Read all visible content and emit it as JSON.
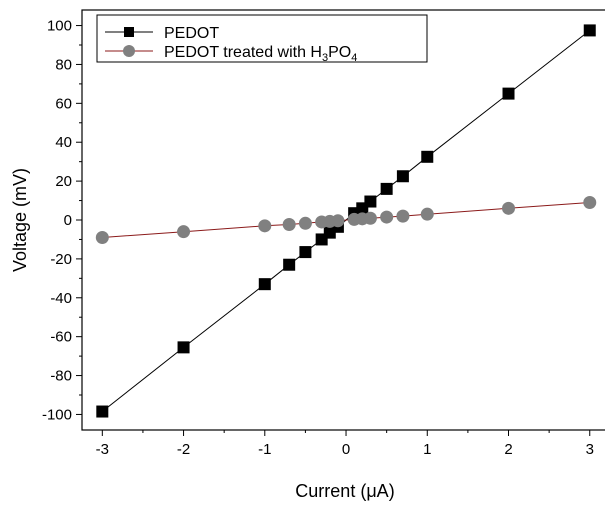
{
  "chart_data": {
    "type": "scatter",
    "xlabel": "Current (μA)",
    "ylabel": "Voltage (mV)",
    "xlim": [
      -3.25,
      3.2
    ],
    "ylim": [
      -108,
      108
    ],
    "xticks": [
      -3,
      -2,
      -1,
      0,
      1,
      2,
      3
    ],
    "yticks": [
      -100,
      -80,
      -60,
      -40,
      -20,
      0,
      20,
      40,
      60,
      80,
      100
    ],
    "legend_position": "top-left",
    "grid": false,
    "series": [
      {
        "name": "PEDOT",
        "marker": "square",
        "color": "#000000",
        "line_color": "#000000",
        "points": [
          {
            "x": -3,
            "y": -98.5
          },
          {
            "x": -2,
            "y": -65.5
          },
          {
            "x": -1,
            "y": -33
          },
          {
            "x": -0.7,
            "y": -23
          },
          {
            "x": -0.5,
            "y": -16.5
          },
          {
            "x": -0.3,
            "y": -10
          },
          {
            "x": -0.2,
            "y": -6.5
          },
          {
            "x": -0.1,
            "y": -3.5
          },
          {
            "x": 0.1,
            "y": 3.5
          },
          {
            "x": 0.2,
            "y": 6
          },
          {
            "x": 0.3,
            "y": 9.5
          },
          {
            "x": 0.5,
            "y": 16
          },
          {
            "x": 0.7,
            "y": 22.5
          },
          {
            "x": 1,
            "y": 32.5
          },
          {
            "x": 2,
            "y": 65
          },
          {
            "x": 3,
            "y": 97.5
          }
        ]
      },
      {
        "name_parts": [
          "PEDOT treated with H",
          "3",
          "PO",
          "4"
        ],
        "marker": "circle",
        "color": "#808080",
        "line_color": "#8b1a1a",
        "points": [
          {
            "x": -3,
            "y": -9
          },
          {
            "x": -2,
            "y": -6
          },
          {
            "x": -1,
            "y": -3
          },
          {
            "x": -0.7,
            "y": -2.3
          },
          {
            "x": -0.5,
            "y": -1.7
          },
          {
            "x": -0.3,
            "y": -1
          },
          {
            "x": -0.2,
            "y": -0.7
          },
          {
            "x": -0.1,
            "y": -0.4
          },
          {
            "x": 0.1,
            "y": 0.3
          },
          {
            "x": 0.2,
            "y": 0.6
          },
          {
            "x": 0.3,
            "y": 0.9
          },
          {
            "x": 0.5,
            "y": 1.5
          },
          {
            "x": 0.7,
            "y": 2
          },
          {
            "x": 1,
            "y": 3
          },
          {
            "x": 2,
            "y": 6
          },
          {
            "x": 3,
            "y": 9
          }
        ]
      }
    ]
  }
}
